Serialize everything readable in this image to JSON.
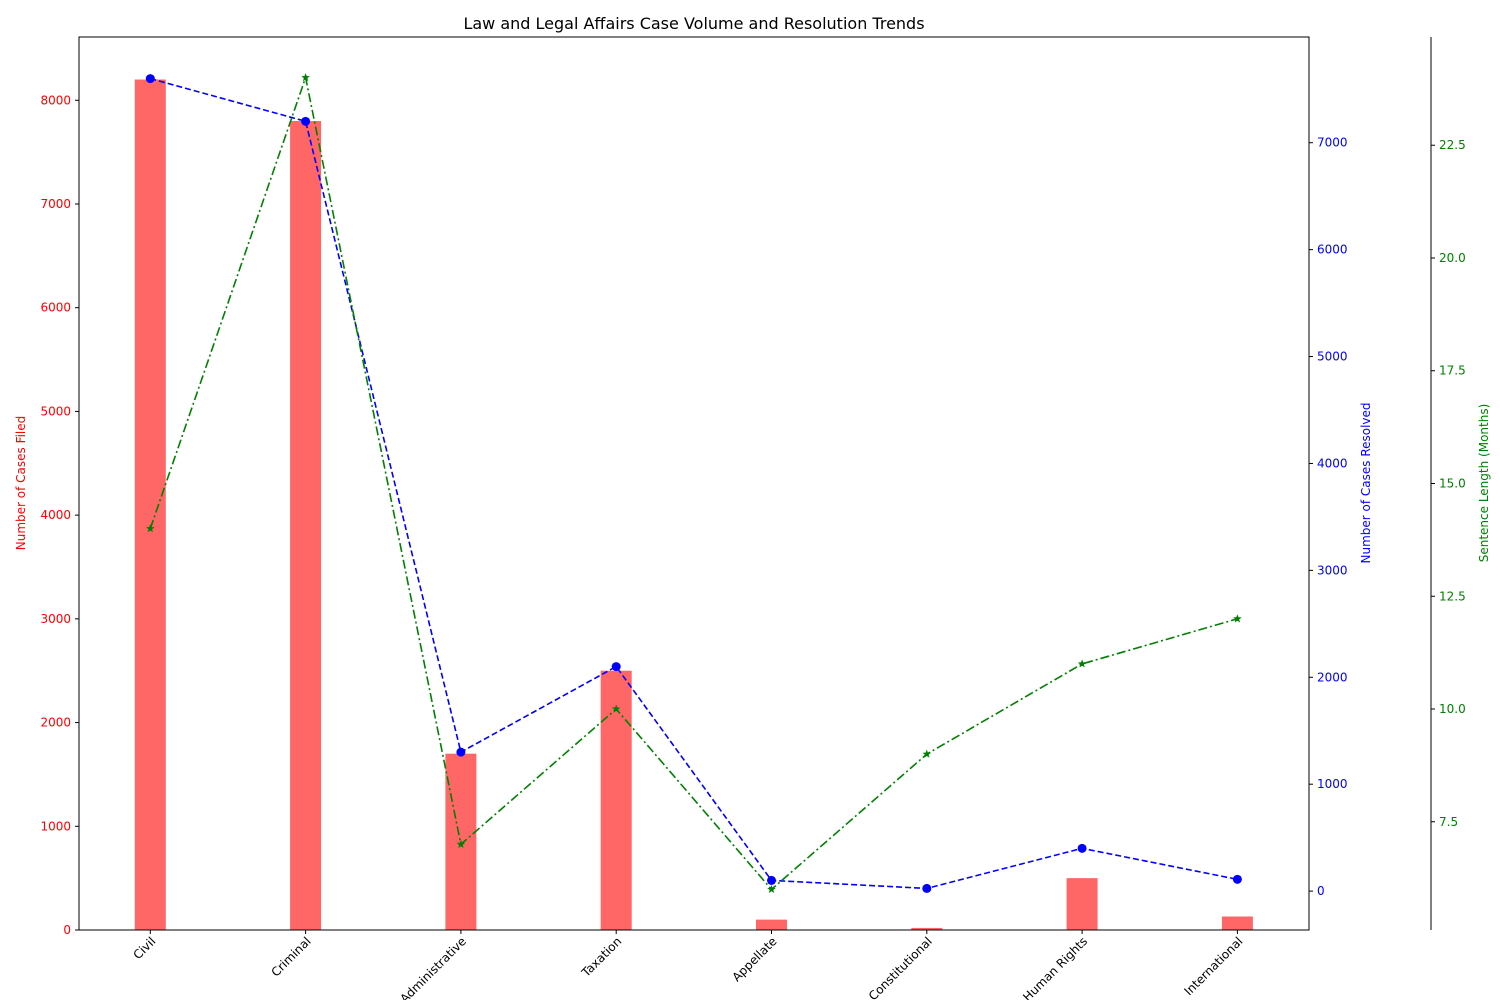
{
  "chart_data": {
    "type": "bar",
    "title": "Law and Legal Affairs Case Volume and Resolution Trends",
    "categories": [
      "Civil",
      "Criminal",
      "Administrative",
      "Taxation",
      "Appellate",
      "Constitutional",
      "Human Rights",
      "International"
    ],
    "series": [
      {
        "name": "Number of Cases Filed",
        "type": "bar",
        "axis": "left",
        "color": "#ff6666",
        "values": [
          8200,
          7800,
          1700,
          2500,
          100,
          20,
          500,
          130
        ]
      },
      {
        "name": "Number of Cases Resolved",
        "type": "line",
        "axis": "right",
        "color": "#0000ff",
        "style": "dashed",
        "marker": "circle",
        "values": [
          7600,
          7200,
          1300,
          2100,
          100,
          25,
          400,
          110
        ]
      },
      {
        "name": "Sentence Length (Months)",
        "type": "line",
        "axis": "far-right",
        "color": "#008000",
        "style": "dash-dot",
        "marker": "star",
        "values": [
          14,
          24,
          7,
          10,
          6,
          9,
          11,
          12
        ]
      }
    ],
    "axes": {
      "left": {
        "label": "Number of Cases Filed",
        "color": "#ff0000",
        "range": [
          0,
          8610
        ],
        "ticks": [
          "0",
          "1000",
          "2000",
          "3000",
          "4000",
          "5000",
          "6000",
          "7000",
          "8000"
        ]
      },
      "right": {
        "label": "Number of Cases Resolved",
        "color": "#0000ff",
        "range": [
          -363.75,
          7988.75
        ],
        "ticks": [
          "0",
          "1000",
          "2000",
          "3000",
          "4000",
          "5000",
          "6000",
          "7000"
        ]
      },
      "far_right": {
        "label": "Sentence Length (Months)",
        "color": "#008000",
        "range": [
          5.1,
          24.9
        ],
        "ticks": [
          "7.5",
          "10.0",
          "12.5",
          "15.0",
          "17.5",
          "20.0",
          "22.5"
        ]
      }
    },
    "grid": false,
    "legend": "none"
  }
}
